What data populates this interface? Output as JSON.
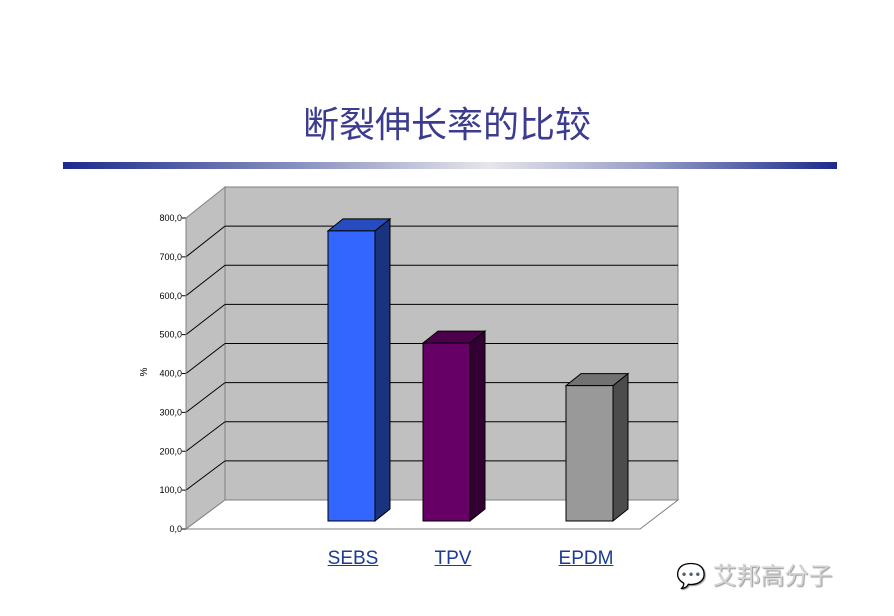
{
  "title": "断裂伸长率的比较",
  "watermark": "艾邦高分子",
  "chart_data": {
    "type": "bar",
    "style": "3d-column",
    "categories": [
      "SEBS",
      "TPV",
      "EPDM"
    ],
    "values": [
      750,
      460,
      350
    ],
    "colors": [
      "#3366ff",
      "#660066",
      "#999999"
    ],
    "ylabel": "%",
    "ylim": [
      0,
      800
    ],
    "yticks": [
      "0,0",
      "100,0",
      "200,0",
      "300,0",
      "400,0",
      "500,0",
      "600,0",
      "700,0",
      "800,0"
    ],
    "grid": true,
    "wall_color": "#c0c0c0"
  }
}
